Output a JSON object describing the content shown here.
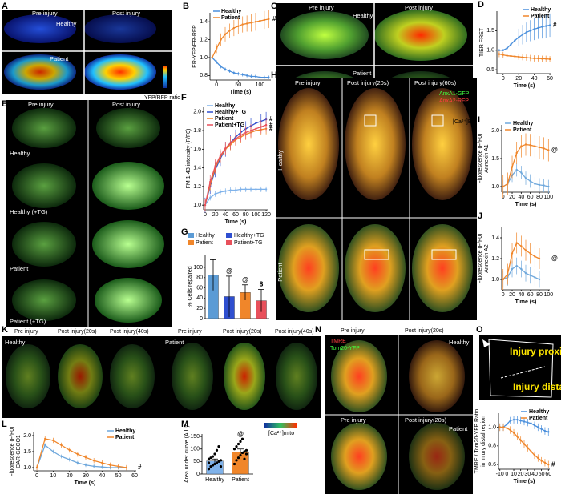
{
  "panel_letters": [
    "A",
    "B",
    "C",
    "D",
    "E",
    "F",
    "G",
    "H",
    "I",
    "J",
    "K",
    "L",
    "M",
    "N",
    "O"
  ],
  "images": {
    "A": [
      "Pre injury",
      "Post injury",
      "Healthy",
      "Patient",
      "YFP/RFP ratio"
    ],
    "C": [
      "Pre injury",
      "Post injury",
      "Healthy",
      "Patient",
      "[Ca²⁺]ER"
    ],
    "E": [
      "Pre injury",
      "Post injury",
      "Healthy",
      "Healthy (+TG)",
      "Patient",
      "Patient (+TG)"
    ],
    "H": [
      "Pre injury",
      "Post injury(20s)",
      "Post injury(60s)",
      "AnxA1-GFP",
      "AnxA2-RFP",
      "Healthy",
      "Patient"
    ],
    "K": [
      "Pre injury",
      "Post injury(20s)",
      "Post injury(40s)",
      "Healthy",
      "Pre injury",
      "Post injury(20s)",
      "Post injury(40s)",
      "Patient",
      "[Ca²⁺]mito"
    ],
    "N": [
      "Pre injury",
      "Post injury(20s)",
      "TMRE",
      "Tom20-YFP",
      "Healthy",
      "Pre injury",
      "Post injury(20s)",
      "Patient"
    ],
    "O": [
      "Injury proximal",
      "Injury distal"
    ]
  },
  "chart_data": [
    {
      "type": "line",
      "ylabel": [
        "ER-YFP/ER-RFP"
      ],
      "xlabel": "Time (s)",
      "x": [
        -10,
        0,
        10,
        20,
        30,
        40,
        50,
        60,
        70,
        80,
        90,
        100,
        110,
        120
      ],
      "xlim": [
        -15,
        125
      ],
      "xticks": [
        0,
        50,
        100
      ],
      "ylim": [
        0.75,
        1.5
      ],
      "yticks": [
        0.8,
        {
          "value": 1,
          "label": "1.0"
        },
        1.2,
        1.4
      ],
      "legend": "upper left",
      "annotations": [
        "#"
      ],
      "series": [
        {
          "name": "Healthy",
          "color": "#4a8fdc",
          "values": [
            1.0,
            0.95,
            0.9,
            0.87,
            0.85,
            0.83,
            0.82,
            0.81,
            0.8,
            0.79,
            0.79,
            0.78,
            0.78,
            0.78
          ],
          "errors": [
            0.02,
            0.02,
            0.02,
            0.02,
            0.02,
            0.02,
            0.02,
            0.02,
            0.02,
            0.02,
            0.02,
            0.02,
            0.02,
            0.02
          ]
        },
        {
          "name": "Patient",
          "color": "#f0862a",
          "values": [
            1.0,
            1.1,
            1.2,
            1.26,
            1.3,
            1.33,
            1.35,
            1.37,
            1.38,
            1.39,
            1.4,
            1.41,
            1.42,
            1.43
          ],
          "errors": [
            0,
            0.05,
            0.07,
            0.08,
            0.08,
            0.09,
            0.09,
            0.09,
            0.09,
            0.1,
            0.1,
            0.1,
            0.1,
            0.1
          ]
        }
      ]
    },
    {
      "type": "line",
      "ylabel": [
        "TIER FRET"
      ],
      "xlabel": "Time (s)",
      "x": [
        -5,
        0,
        5,
        10,
        15,
        20,
        25,
        30,
        35,
        40,
        45,
        50,
        55,
        60
      ],
      "xlim": [
        -8,
        62
      ],
      "xticks": [
        0,
        20,
        40,
        60
      ],
      "ylim": [
        0.4,
        2.0
      ],
      "yticks": [
        0.5,
        {
          "value": 1,
          "label": "1.0"
        },
        1.5
      ],
      "legend": "upper right",
      "annotations": [
        "#"
      ],
      "series": [
        {
          "name": "Healthy",
          "color": "#4a8fdc",
          "values": [
            1.0,
            1.0,
            1.05,
            1.15,
            1.25,
            1.33,
            1.4,
            1.46,
            1.5,
            1.54,
            1.57,
            1.6,
            1.62,
            1.64
          ],
          "errors": [
            0.02,
            0.02,
            0.1,
            0.15,
            0.2,
            0.22,
            0.25,
            0.25,
            0.27,
            0.28,
            0.28,
            0.3,
            0.3,
            0.3
          ]
        },
        {
          "name": "Patient",
          "color": "#f0862a",
          "values": [
            0.9,
            0.88,
            0.86,
            0.85,
            0.84,
            0.83,
            0.82,
            0.81,
            0.8,
            0.79,
            0.79,
            0.78,
            0.78,
            0.77
          ],
          "errors": [
            0.08,
            0.08,
            0.08,
            0.08,
            0.08,
            0.08,
            0.08,
            0.08,
            0.08,
            0.08,
            0.08,
            0.08,
            0.08,
            0.08
          ]
        }
      ]
    },
    {
      "type": "line",
      "ylabel": [
        "FM 1-43 intensity (F/F0)"
      ],
      "xlabel": "Time (s)",
      "x": [
        0,
        10,
        20,
        30,
        40,
        50,
        60,
        70,
        80,
        90,
        100,
        110,
        120
      ],
      "xlim": [
        -3,
        123
      ],
      "xticks": [
        0,
        20,
        40,
        60,
        80,
        100,
        120
      ],
      "ylim": [
        0.95,
        2.05
      ],
      "yticks": [
        {
          "value": 1,
          "label": "1.0"
        },
        1.2,
        1.4,
        1.6,
        1.8,
        {
          "value": 2,
          "label": "2.0"
        }
      ],
      "legend": "upper left",
      "annotations": [
        "#",
        "#",
        "#"
      ],
      "series": [
        {
          "name": "Healthy",
          "color": "#7fb2ea",
          "values": [
            1.0,
            1.08,
            1.12,
            1.14,
            1.15,
            1.16,
            1.16,
            1.17,
            1.17,
            1.17,
            1.17,
            1.17,
            1.17
          ],
          "errors": [
            0.03,
            0.03,
            0.03,
            0.03,
            0.03,
            0.03,
            0.03,
            0.03,
            0.03,
            0.03,
            0.03,
            0.03,
            0.03
          ]
        },
        {
          "name": "Healthy+TG",
          "color": "#2f4fd0",
          "values": [
            1.0,
            1.2,
            1.38,
            1.5,
            1.6,
            1.67,
            1.73,
            1.78,
            1.82,
            1.85,
            1.88,
            1.9,
            1.92
          ],
          "errors": [
            0.08,
            0.08,
            0.08,
            0.08,
            0.08,
            0.08,
            0.08,
            0.08,
            0.08,
            0.08,
            0.08,
            0.08,
            0.08
          ]
        },
        {
          "name": "Patient",
          "color": "#f0862a",
          "values": [
            1.0,
            1.22,
            1.4,
            1.52,
            1.6,
            1.65,
            1.7,
            1.73,
            1.76,
            1.78,
            1.8,
            1.81,
            1.82
          ],
          "errors": [
            0.06,
            0.06,
            0.06,
            0.06,
            0.06,
            0.06,
            0.06,
            0.06,
            0.06,
            0.06,
            0.06,
            0.06,
            0.06
          ]
        },
        {
          "name": "Patient+TG",
          "color": "#e8505b",
          "values": [
            1.0,
            1.25,
            1.42,
            1.53,
            1.61,
            1.67,
            1.71,
            1.75,
            1.78,
            1.8,
            1.82,
            1.84,
            1.86
          ],
          "errors": [
            0.07,
            0.07,
            0.07,
            0.07,
            0.07,
            0.07,
            0.07,
            0.07,
            0.07,
            0.07,
            0.07,
            0.07,
            0.07
          ]
        }
      ]
    },
    {
      "type": "bar",
      "ylabel": [
        "% Cells repaired"
      ],
      "ylim": [
        0,
        125
      ],
      "yticks": [
        0,
        20,
        40,
        60,
        80,
        100
      ],
      "legend": "top",
      "annotations": [
        "@",
        "@",
        "$"
      ],
      "series": [
        {
          "name": "Healthy",
          "color": "#5b9bd5",
          "values": [
            85
          ],
          "errors": [
            30
          ]
        },
        {
          "name": "Healthy+TG",
          "color": "#2f4fd0",
          "values": [
            43
          ],
          "errors": [
            40
          ]
        },
        {
          "name": "Patient",
          "color": "#f0862a",
          "values": [
            51
          ],
          "errors": [
            15
          ]
        },
        {
          "name": "Patient+TG",
          "color": "#e8505b",
          "values": [
            35
          ],
          "errors": [
            22
          ]
        }
      ]
    },
    {
      "type": "line",
      "ylabel": [
        "Fluorescence (F/F0)",
        "Annexin A1"
      ],
      "xlabel": "Time (s)",
      "x": [
        0,
        10,
        20,
        30,
        40,
        50,
        60,
        70,
        80,
        90,
        100
      ],
      "xlim": [
        -3,
        103
      ],
      "xticks": [
        0,
        20,
        40,
        60,
        80,
        100
      ],
      "ylim": [
        0.9,
        2.1
      ],
      "yticks": [
        {
          "value": 1,
          "label": "1.0"
        },
        1.5,
        {
          "value": 2,
          "label": "2.0"
        }
      ],
      "legend": "upper left",
      "annotations": [
        "@"
      ],
      "series": [
        {
          "name": "Healthy",
          "color": "#6fa8dc",
          "values": [
            1.0,
            1.05,
            1.2,
            1.3,
            1.25,
            1.15,
            1.1,
            1.05,
            1.03,
            1.02,
            1.0
          ],
          "errors": [
            0.12,
            0.12,
            0.12,
            0.12,
            0.12,
            0.12,
            0.12,
            0.12,
            0.12,
            0.12,
            0.12
          ]
        },
        {
          "name": "Patient",
          "color": "#f0862a",
          "values": [
            1.0,
            1.05,
            1.35,
            1.6,
            1.72,
            1.75,
            1.74,
            1.72,
            1.7,
            1.68,
            1.65
          ],
          "errors": [
            0.2,
            0.2,
            0.2,
            0.2,
            0.2,
            0.2,
            0.2,
            0.2,
            0.2,
            0.2,
            0.2
          ]
        }
      ]
    },
    {
      "type": "line",
      "ylabel": [
        "Fluorescence (F/F0)",
        "Annexin A2"
      ],
      "xlabel": "Time (s)",
      "x": [
        0,
        10,
        20,
        30,
        40,
        50,
        60,
        70,
        80
      ],
      "xlim": [
        -3,
        103
      ],
      "xticks": [
        0,
        20,
        40,
        60,
        80,
        100
      ],
      "ylim": [
        0.9,
        1.5
      ],
      "yticks": [
        {
          "value": 1,
          "label": "1.0"
        },
        1.2,
        1.4
      ],
      "annotations": [
        "@"
      ],
      "series": [
        {
          "name": "Healthy",
          "color": "#6fa8dc",
          "values": [
            1.0,
            1.02,
            1.1,
            1.13,
            1.1,
            1.06,
            1.04,
            1.02,
            1.0
          ],
          "errors": [
            0.08,
            0.08,
            0.08,
            0.08,
            0.08,
            0.08,
            0.08,
            0.08,
            0.08
          ]
        },
        {
          "name": "Patient",
          "color": "#f0862a",
          "values": [
            1.0,
            1.05,
            1.25,
            1.35,
            1.32,
            1.28,
            1.25,
            1.22,
            1.2
          ],
          "errors": [
            0.1,
            0.1,
            0.1,
            0.1,
            0.1,
            0.1,
            0.1,
            0.1,
            0.1
          ]
        }
      ]
    },
    {
      "type": "line",
      "ylabel": [
        "Fluorescence (F/F0)",
        "CAR-GECO1"
      ],
      "xlabel": "Time (s)",
      "x": [
        0,
        5,
        10,
        15,
        20,
        25,
        30,
        35,
        40,
        45,
        50,
        55
      ],
      "xlim": [
        -2,
        61
      ],
      "xticks": [
        0,
        10,
        20,
        30,
        40,
        50,
        60
      ],
      "ylim": [
        0.9,
        2.1
      ],
      "yticks": [
        {
          "value": 1,
          "label": "1.0"
        },
        1.5,
        {
          "value": 2,
          "label": "2.0"
        }
      ],
      "legend": "upper right",
      "annotations": [
        "#"
      ],
      "series": [
        {
          "name": "Healthy",
          "color": "#6fa8dc",
          "values": [
            1.0,
            1.7,
            1.5,
            1.35,
            1.25,
            1.15,
            1.08,
            1.04,
            1.02,
            1.0,
            1.0,
            1.0
          ],
          "errors": [
            0.06,
            0.06,
            0.06,
            0.06,
            0.06,
            0.06,
            0.06,
            0.06,
            0.06,
            0.06,
            0.06,
            0.06
          ]
        },
        {
          "name": "Patient",
          "color": "#f0862a",
          "values": [
            1.0,
            1.9,
            1.85,
            1.7,
            1.55,
            1.42,
            1.32,
            1.22,
            1.15,
            1.08,
            1.04,
            1.0
          ],
          "errors": [
            0.08,
            0.08,
            0.08,
            0.08,
            0.08,
            0.08,
            0.08,
            0.08,
            0.08,
            0.08,
            0.08,
            0.08
          ]
        }
      ]
    },
    {
      "type": "bar",
      "ylabel": [
        "Area under curve (A.U)"
      ],
      "ylim": [
        0,
        160
      ],
      "yticks": [
        0,
        50,
        100,
        150
      ],
      "annotations": [
        "@"
      ],
      "categories": [
        "Healthy",
        "Patient"
      ],
      "colors": [
        "#7fb2ea",
        "#f0862a"
      ],
      "values": [
        52,
        88
      ],
      "errors": [
        8,
        12
      ],
      "points": [
        [
          20,
          30,
          35,
          40,
          45,
          50,
          55,
          60,
          65,
          70,
          80,
          95,
          110,
          30,
          45
        ],
        [
          40,
          55,
          65,
          75,
          85,
          90,
          95,
          100,
          110,
          120,
          130,
          140,
          60,
          80
        ]
      ]
    },
    {
      "type": "line",
      "ylabel": [
        "TMRE / Tom20-YFP Ratio",
        "in injury distal region"
      ],
      "xlabel": "Time (s)",
      "x": [
        -10,
        -5,
        0,
        5,
        10,
        15,
        20,
        25,
        30,
        35,
        40,
        45,
        50,
        55,
        60
      ],
      "xlim": [
        -12,
        62
      ],
      "xticks": [
        -10,
        0,
        10,
        20,
        30,
        40,
        50,
        60
      ],
      "ylim": [
        0.55,
        1.15
      ],
      "yticks": [
        0.6,
        0.8,
        {
          "value": 1,
          "label": "1.0"
        }
      ],
      "legend": "upper right",
      "annotations": [
        "#"
      ],
      "series": [
        {
          "name": "Healthy",
          "color": "#4a8fdc",
          "values": [
            1.0,
            1.0,
            1.03,
            1.07,
            1.08,
            1.08,
            1.07,
            1.06,
            1.05,
            1.04,
            1.02,
            1.0,
            0.98,
            0.96,
            0.95
          ],
          "errors": [
            0.04,
            0.04,
            0.04,
            0.04,
            0.04,
            0.04,
            0.04,
            0.04,
            0.04,
            0.04,
            0.04,
            0.04,
            0.04,
            0.04,
            0.04
          ]
        },
        {
          "name": "Patient",
          "color": "#f0862a",
          "values": [
            1.0,
            1.0,
            0.99,
            0.97,
            0.94,
            0.9,
            0.86,
            0.82,
            0.78,
            0.74,
            0.7,
            0.67,
            0.64,
            0.62,
            0.6
          ],
          "errors": [
            0.04,
            0.04,
            0.04,
            0.04,
            0.04,
            0.04,
            0.04,
            0.04,
            0.04,
            0.04,
            0.04,
            0.04,
            0.04,
            0.04,
            0.04
          ]
        }
      ]
    }
  ]
}
